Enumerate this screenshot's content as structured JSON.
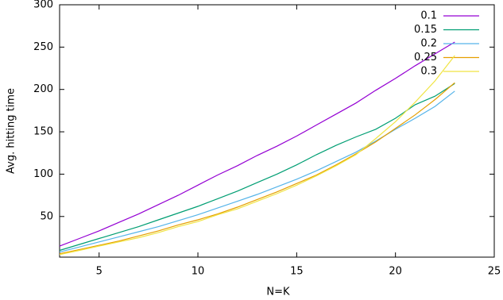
{
  "chart_data": {
    "type": "line",
    "x_label": "N=K",
    "y_label": "Avg. hitting time",
    "x": [
      3,
      4,
      5,
      6,
      7,
      8,
      9,
      10,
      11,
      12,
      13,
      14,
      15,
      16,
      17,
      18,
      19,
      20,
      21,
      22,
      23
    ],
    "series": [
      {
        "name": "0.1",
        "color": "#9400d3",
        "values": [
          15,
          24,
          33,
          43,
          53,
          64,
          75,
          87,
          99,
          110,
          122,
          133,
          145,
          158,
          171,
          184,
          199,
          213,
          228,
          242,
          256
        ]
      },
      {
        "name": "0.15",
        "color": "#009e73",
        "values": [
          10,
          17,
          24,
          31,
          38,
          46,
          54,
          62,
          71,
          80,
          90,
          100,
          111,
          123,
          134,
          144,
          153,
          166,
          182,
          192,
          207
        ]
      },
      {
        "name": "0.2",
        "color": "#56b4e9",
        "values": [
          8,
          14,
          20,
          26,
          32,
          38,
          45,
          52,
          60,
          68,
          76,
          85,
          94,
          104,
          115,
          126,
          139,
          153,
          166,
          180,
          198
        ]
      },
      {
        "name": "0.25",
        "color": "#e69f00",
        "values": [
          6,
          11,
          16,
          21,
          27,
          33,
          40,
          46,
          53,
          61,
          70,
          79,
          89,
          99,
          111,
          124,
          138,
          154,
          170,
          188,
          208
        ]
      },
      {
        "name": "0.3",
        "color": "#f0e442",
        "values": [
          5,
          10,
          15,
          20,
          25,
          31,
          38,
          44,
          52,
          59,
          68,
          77,
          87,
          98,
          110,
          123,
          142,
          162,
          185,
          210,
          240
        ]
      }
    ],
    "xlim": [
      3,
      25
    ],
    "xticks": [
      5,
      10,
      15,
      20,
      25
    ],
    "ylim": [
      2,
      300
    ],
    "yticks": [
      50,
      100,
      150,
      200,
      250,
      300
    ],
    "legend": "top-right"
  }
}
